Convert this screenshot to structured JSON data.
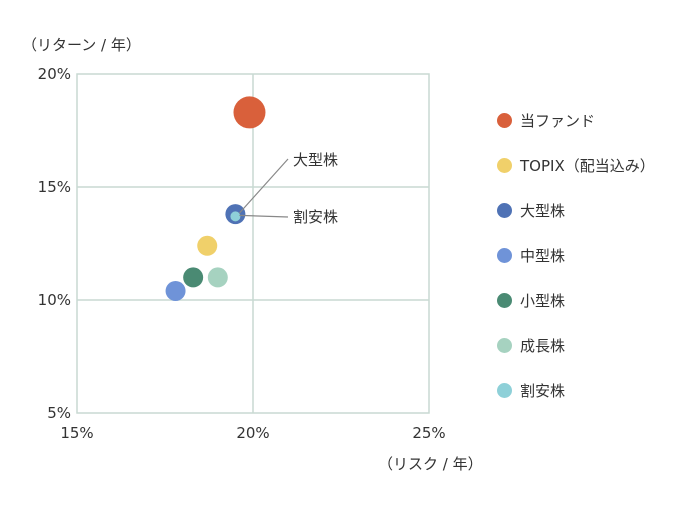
{
  "chart_data": {
    "type": "scatter",
    "xlabel": "（リスク / 年）",
    "ylabel": "（リターン / 年）",
    "xlim": [
      15,
      25
    ],
    "ylim": [
      5,
      20
    ],
    "x_ticks": [
      "15%",
      "20%",
      "25%"
    ],
    "y_ticks": [
      "5%",
      "10%",
      "15%",
      "20%"
    ],
    "grid": true,
    "legend_position": "right",
    "series": [
      {
        "name": "当ファンド",
        "x": 19.9,
        "y": 18.3,
        "color": "#d9603b",
        "size": "large"
      },
      {
        "name": "TOPIX（配当込み）",
        "x": 18.7,
        "y": 12.4,
        "color": "#f0d06a",
        "size": "medium"
      },
      {
        "name": "大型株",
        "x": 19.5,
        "y": 13.8,
        "color": "#4f72b5",
        "size": "medium"
      },
      {
        "name": "中型株",
        "x": 17.8,
        "y": 10.4,
        "color": "#6f93d8",
        "size": "medium"
      },
      {
        "name": "小型株",
        "x": 18.3,
        "y": 11.0,
        "color": "#4a8a73",
        "size": "medium"
      },
      {
        "name": "成長株",
        "x": 19.0,
        "y": 11.0,
        "color": "#a6d2c0",
        "size": "medium"
      },
      {
        "name": "割安株",
        "x": 19.5,
        "y": 13.7,
        "color": "#8ed0d8",
        "size": "small"
      }
    ],
    "annotations": [
      {
        "text": "大型株",
        "target": "大型株"
      },
      {
        "text": "割安株",
        "target": "割安株"
      }
    ]
  }
}
